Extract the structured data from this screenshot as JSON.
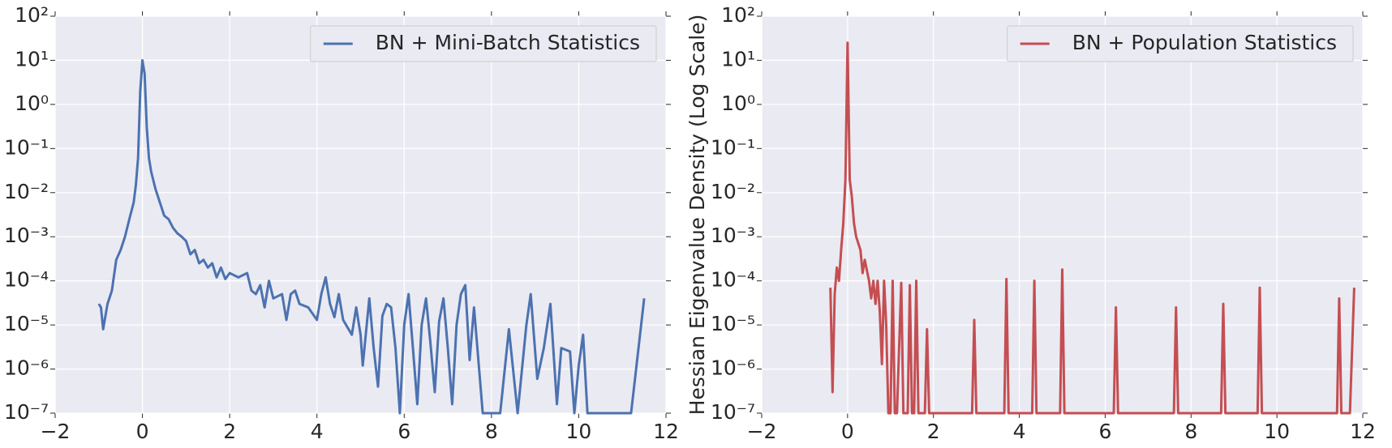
{
  "chart_data": [
    {
      "type": "line",
      "x": [
        -1.0,
        -0.95,
        -0.9,
        -0.8,
        -0.7,
        -0.6,
        -0.5,
        -0.4,
        -0.3,
        -0.2,
        -0.15,
        -0.1,
        -0.05,
        0,
        0.05,
        0.1,
        0.15,
        0.2,
        0.3,
        0.4,
        0.5,
        0.6,
        0.7,
        0.8,
        0.9,
        1.0,
        1.1,
        1.2,
        1.3,
        1.4,
        1.5,
        1.6,
        1.7,
        1.8,
        1.9,
        2.0,
        2.2,
        2.4,
        2.5,
        2.6,
        2.7,
        2.8,
        2.9,
        3.0,
        3.2,
        3.3,
        3.4,
        3.5,
        3.6,
        3.8,
        4.0,
        4.1,
        4.2,
        4.3,
        4.4,
        4.5,
        4.6,
        4.8,
        4.9,
        5.0,
        5.05,
        5.2,
        5.3,
        5.4,
        5.5,
        5.6,
        5.7,
        5.8,
        5.9,
        6.0,
        6.1,
        6.2,
        6.3,
        6.4,
        6.5,
        6.6,
        6.7,
        6.8,
        6.9,
        7.0,
        7.1,
        7.2,
        7.3,
        7.4,
        7.5,
        7.6,
        7.7,
        7.8,
        8.2,
        8.4,
        8.6,
        8.8,
        8.9,
        9.05,
        9.2,
        9.35,
        9.5,
        9.6,
        9.8,
        9.9,
        10.0,
        10.1,
        10.2,
        11.2,
        11.5
      ],
      "series": [
        {
          "name": "BN + Mini-Batch Statistics",
          "color": "#4c72b0",
          "values": [
            3e-05,
            2.5e-05,
            8e-06,
            3e-05,
            6e-05,
            0.0003,
            0.0005,
            0.001,
            0.0025,
            0.006,
            0.015,
            0.06,
            2,
            10,
            5,
            0.3,
            0.06,
            0.03,
            0.012,
            0.006,
            0.003,
            0.0025,
            0.0016,
            0.0012,
            0.001,
            0.0008,
            0.0004,
            0.0005,
            0.00025,
            0.0003,
            0.0002,
            0.00025,
            0.00012,
            0.0002,
            0.00011,
            0.00015,
            0.00012,
            0.00015,
            6e-05,
            5e-05,
            8e-05,
            2.5e-05,
            0.0001,
            4e-05,
            5e-05,
            1.3e-05,
            5e-05,
            6e-05,
            3e-05,
            2.5e-05,
            1.3e-05,
            5e-05,
            0.00012,
            3e-05,
            1.5e-05,
            5e-05,
            1.3e-05,
            6e-06,
            2.5e-05,
            6e-06,
            1.2e-06,
            4e-05,
            3e-06,
            4e-07,
            1.6e-05,
            3e-05,
            2.5e-05,
            3e-06,
            1e-07,
            1e-05,
            5e-05,
            3e-06,
            1.6e-07,
            1e-05,
            4e-05,
            4e-06,
            3e-07,
            1.2e-05,
            4e-05,
            3e-06,
            1.6e-07,
            1e-05,
            5e-05,
            8e-05,
            1.6e-06,
            2.5e-05,
            1.6e-06,
            1e-07,
            1e-07,
            8e-06,
            1e-07,
            1e-05,
            5e-05,
            6e-07,
            3e-06,
            3e-05,
            1.6e-07,
            3e-06,
            2.5e-06,
            1e-07,
            1.2e-06,
            6e-06,
            1e-07,
            1e-07,
            4e-05
          ]
        }
      ],
      "xlim": [
        -2,
        12
      ],
      "ylim": [
        1e-07,
        100
      ],
      "log_y": true,
      "grid": true,
      "legend": "upper right",
      "xticks": [
        {
          "value": -2,
          "label": "−2"
        },
        0,
        2,
        4,
        6,
        8,
        10,
        12
      ],
      "yticks": [
        {
          "value": 1e-07,
          "label": "10⁻⁷"
        },
        {
          "value": 1e-06,
          "label": "10⁻⁶"
        },
        {
          "value": 1e-05,
          "label": "10⁻⁵"
        },
        {
          "value": 0.0001,
          "label": "10⁻⁴"
        },
        {
          "value": 0.001,
          "label": "10⁻³"
        },
        {
          "value": 0.01,
          "label": "10⁻²"
        },
        {
          "value": 0.1,
          "label": "10⁻¹"
        },
        {
          "value": 1,
          "label": "10⁰"
        },
        {
          "value": 10,
          "label": "10¹"
        },
        {
          "value": 100,
          "label": "10²"
        }
      ]
    },
    {
      "type": "line",
      "y_label": "Hessian Eigenvalue Density (Log Scale)",
      "x": [
        -0.4,
        -0.35,
        -0.3,
        -0.25,
        -0.2,
        -0.15,
        -0.1,
        -0.05,
        0,
        0.05,
        0.1,
        0.15,
        0.2,
        0.3,
        0.35,
        0.4,
        0.5,
        0.55,
        0.6,
        0.65,
        0.7,
        0.75,
        0.8,
        0.85,
        0.9,
        0.95,
        1.0,
        1.05,
        1.1,
        1.15,
        1.25,
        1.3,
        1.4,
        1.45,
        1.5,
        1.55,
        1.6,
        1.65,
        1.8,
        1.85,
        1.9,
        2.9,
        2.95,
        3.0,
        3.65,
        3.7,
        3.75,
        4.3,
        4.35,
        4.4,
        4.95,
        5.0,
        5.05,
        6.2,
        6.25,
        6.3,
        7.6,
        7.65,
        7.7,
        8.7,
        8.75,
        8.8,
        9.55,
        9.6,
        9.65,
        11.4,
        11.45,
        11.5,
        11.7,
        11.8
      ],
      "series": [
        {
          "name": "BN + Population Statistics",
          "color": "#c44e52",
          "values": [
            7e-05,
            3e-07,
            5e-05,
            0.0002,
            0.0001,
            0.0005,
            0.002,
            0.02,
            25,
            0.02,
            0.008,
            0.002,
            0.001,
            0.0005,
            0.00015,
            0.0003,
            0.0001,
            4e-05,
            0.0001,
            3e-05,
            0.0001,
            2e-05,
            1.3e-06,
            0.0001,
            1e-05,
            1e-07,
            1e-07,
            0.0001,
            1e-07,
            1e-07,
            9e-05,
            1e-07,
            1e-07,
            8e-05,
            1e-07,
            1e-07,
            0.0001,
            1e-07,
            1e-07,
            8e-06,
            1e-07,
            1e-07,
            1.3e-05,
            1e-07,
            1e-07,
            0.00011,
            1e-07,
            1e-07,
            0.0001,
            1e-07,
            1e-07,
            0.00018,
            1e-07,
            1e-07,
            2.5e-05,
            1e-07,
            1e-07,
            2.5e-05,
            1e-07,
            1e-07,
            3e-05,
            1e-07,
            1e-07,
            7e-05,
            1e-07,
            1e-07,
            4e-05,
            1e-07,
            1e-07,
            7e-05
          ]
        }
      ],
      "xlim": [
        -2,
        12
      ],
      "ylim": [
        1e-07,
        100
      ],
      "log_y": true,
      "grid": true,
      "legend": "upper right",
      "xticks": [
        {
          "value": -2,
          "label": "−2"
        },
        0,
        2,
        4,
        6,
        8,
        10,
        12
      ],
      "yticks": [
        {
          "value": 1e-07,
          "label": "10⁻⁷"
        },
        {
          "value": 1e-06,
          "label": "10⁻⁶"
        },
        {
          "value": 1e-05,
          "label": "10⁻⁵"
        },
        {
          "value": 0.0001,
          "label": "10⁻⁴"
        },
        {
          "value": 0.001,
          "label": "10⁻³"
        },
        {
          "value": 0.01,
          "label": "10⁻²"
        },
        {
          "value": 0.1,
          "label": "10⁻¹"
        },
        {
          "value": 1,
          "label": "10⁰"
        },
        {
          "value": 10,
          "label": "10¹"
        },
        {
          "value": 100,
          "label": "10²"
        }
      ]
    }
  ]
}
